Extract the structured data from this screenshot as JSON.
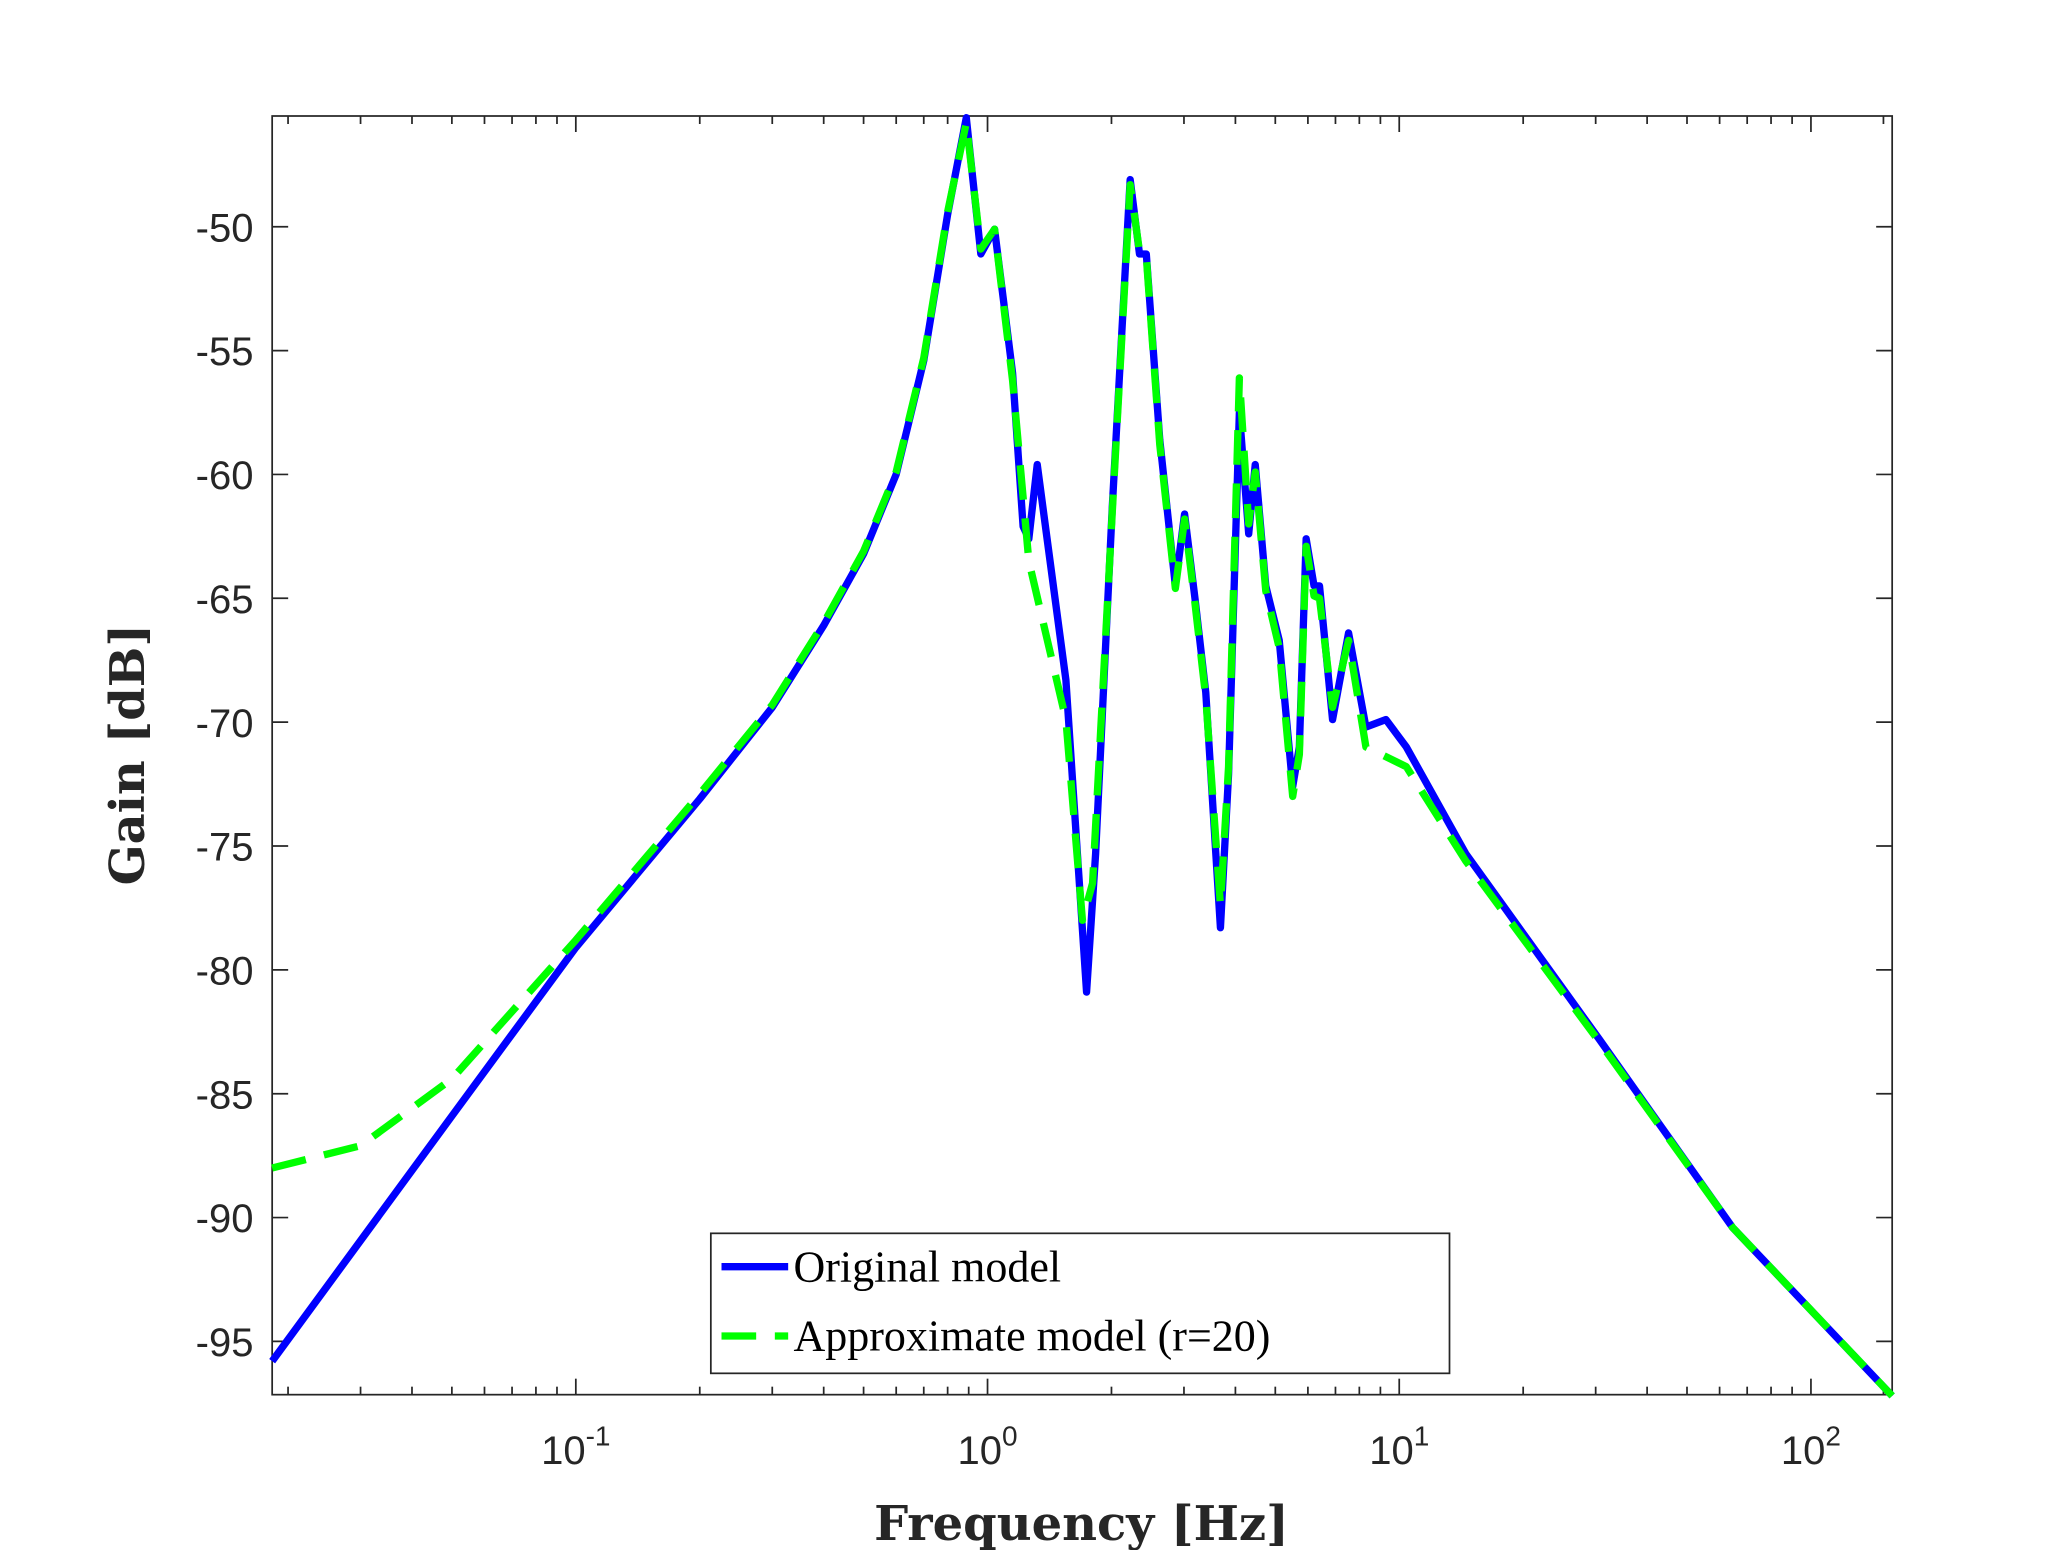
{
  "chart_data": {
    "type": "line",
    "xlabel": "Frequency [Hz]",
    "ylabel": "Gain [dB]",
    "xscale": "log",
    "xlim": [
      0.0183,
      157.5
    ],
    "ylim": [
      -97.15,
      -45.53
    ],
    "xticks": [
      {
        "value": 0.1,
        "label": "10^-1"
      },
      {
        "value": 1,
        "label": "10^0"
      },
      {
        "value": 10,
        "label": "10^1"
      },
      {
        "value": 100,
        "label": "10^2"
      }
    ],
    "xminorticks": [
      0.02,
      0.03,
      0.04,
      0.05,
      0.06,
      0.07,
      0.08,
      0.09,
      0.2,
      0.3,
      0.4,
      0.5,
      0.6,
      0.7,
      0.8,
      0.9,
      2,
      3,
      4,
      5,
      6,
      7,
      8,
      9,
      20,
      30,
      40,
      50,
      60,
      70,
      80,
      90,
      150
    ],
    "yticks": [
      -95,
      -90,
      -85,
      -80,
      -75,
      -70,
      -65,
      -60,
      -55,
      -50
    ],
    "grid": false,
    "legend": "lower center",
    "series": [
      {
        "name": "Original model",
        "color": "#0000ff",
        "dash": "solid",
        "x": [
          0.0183,
          0.05,
          0.1,
          0.2,
          0.3,
          0.4,
          0.5,
          0.6,
          0.7,
          0.8,
          0.888,
          0.963,
          1.04,
          1.15,
          1.22,
          1.26,
          1.32,
          1.39,
          1.55,
          1.74,
          1.83,
          2.01,
          2.22,
          2.34,
          2.43,
          2.62,
          2.86,
          3.01,
          3.19,
          3.39,
          3.68,
          3.85,
          4.09,
          4.31,
          4.47,
          4.74,
          5.11,
          5.51,
          5.72,
          5.94,
          6.21,
          6.4,
          6.89,
          7.53,
          8.3,
          9.28,
          10.4,
          14.5,
          30.6,
          64.5,
          157.5
        ],
        "values": [
          -95.8,
          -85.9,
          -79.1,
          -73.1,
          -69.4,
          -66.1,
          -63.2,
          -60.0,
          -55.4,
          -49.5,
          -45.6,
          -51.1,
          -50.1,
          -55.9,
          -62.1,
          -62.6,
          -59.6,
          -62.4,
          -68.3,
          -80.9,
          -75.3,
          -61.3,
          -48.1,
          -51.1,
          -51.1,
          -58.6,
          -64.5,
          -61.6,
          -65.0,
          -68.8,
          -78.3,
          -72.1,
          -57.5,
          -62.4,
          -59.6,
          -64.5,
          -66.7,
          -72.6,
          -71.0,
          -62.6,
          -64.5,
          -64.5,
          -69.9,
          -66.4,
          -70.2,
          -69.9,
          -71.0,
          -75.3,
          -82.8,
          -90.4,
          -97.2
        ]
      },
      {
        "name": "Approximate model (r=20)",
        "color": "#00ff00",
        "dash": "dashed",
        "x": [
          0.0183,
          0.03,
          0.05,
          0.1,
          0.2,
          0.3,
          0.4,
          0.5,
          0.6,
          0.7,
          0.8,
          0.888,
          0.963,
          1.04,
          1.15,
          1.26,
          1.55,
          1.7,
          1.8,
          2.01,
          2.22,
          2.34,
          2.43,
          2.62,
          2.86,
          3.01,
          3.19,
          3.39,
          3.68,
          3.85,
          4.09,
          4.31,
          4.47,
          4.74,
          5.11,
          5.51,
          5.72,
          5.94,
          6.21,
          6.4,
          6.89,
          7.53,
          8.3,
          10.4,
          14.5,
          30.6,
          64.5,
          157.5
        ],
        "values": [
          -88.0,
          -87.1,
          -84.4,
          -78.8,
          -72.9,
          -69.3,
          -66.0,
          -63.1,
          -59.9,
          -55.3,
          -49.4,
          -45.8,
          -50.9,
          -50.1,
          -56.2,
          -63.5,
          -69.9,
          -78.0,
          -76.5,
          -61.5,
          -48.3,
          -51.0,
          -51.2,
          -58.8,
          -64.6,
          -61.8,
          -65.2,
          -69.0,
          -77.4,
          -71.8,
          -56.1,
          -62.0,
          -59.9,
          -64.7,
          -67.0,
          -73.0,
          -71.3,
          -62.9,
          -64.9,
          -65.0,
          -69.4,
          -66.7,
          -71.0,
          -71.8,
          -75.6,
          -82.9,
          -90.4,
          -97.2
        ]
      }
    ]
  }
}
